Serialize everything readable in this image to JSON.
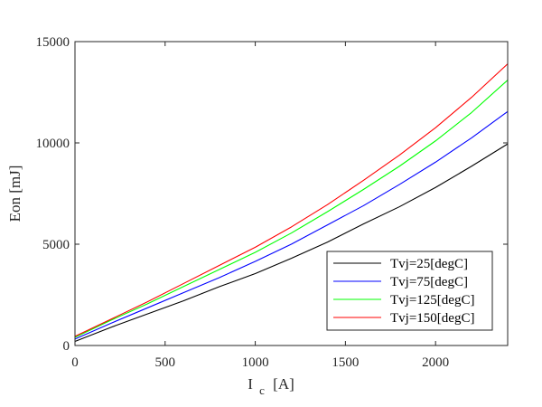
{
  "chart_data": {
    "type": "line",
    "title": "",
    "xlabel_main": "I",
    "xlabel_sub": "c",
    "xlabel_unit": "[A]",
    "ylabel": "Eon [mJ]",
    "xlim": [
      0,
      2400
    ],
    "ylim": [
      0,
      15000
    ],
    "xticks": [
      0,
      500,
      1000,
      1500,
      2000
    ],
    "yticks": [
      0,
      5000,
      10000,
      15000
    ],
    "grid": false,
    "legend_position": "bottom-right",
    "x": [
      0,
      200,
      400,
      600,
      800,
      1000,
      1200,
      1400,
      1600,
      1800,
      2000,
      2200,
      2400
    ],
    "series": [
      {
        "name": "Tvj=25[degC]",
        "color": "#000000",
        "values": [
          200,
          900,
          1550,
          2200,
          2900,
          3550,
          4300,
          5100,
          6000,
          6850,
          7800,
          8850,
          9950
        ]
      },
      {
        "name": "Tvj=75[degC]",
        "color": "#0000ff",
        "values": [
          320,
          1100,
          1850,
          2600,
          3350,
          4150,
          5000,
          5950,
          6900,
          7950,
          9050,
          10250,
          11550
        ]
      },
      {
        "name": "Tvj=125[degC]",
        "color": "#00ff00",
        "values": [
          400,
          1250,
          2050,
          2900,
          3750,
          4600,
          5550,
          6600,
          7700,
          8850,
          10100,
          11500,
          13100
        ]
      },
      {
        "name": "Tvj=150[degC]",
        "color": "#ff0000",
        "values": [
          450,
          1300,
          2150,
          3050,
          3950,
          4850,
          5850,
          6950,
          8150,
          9400,
          10750,
          12250,
          13900
        ]
      }
    ]
  }
}
